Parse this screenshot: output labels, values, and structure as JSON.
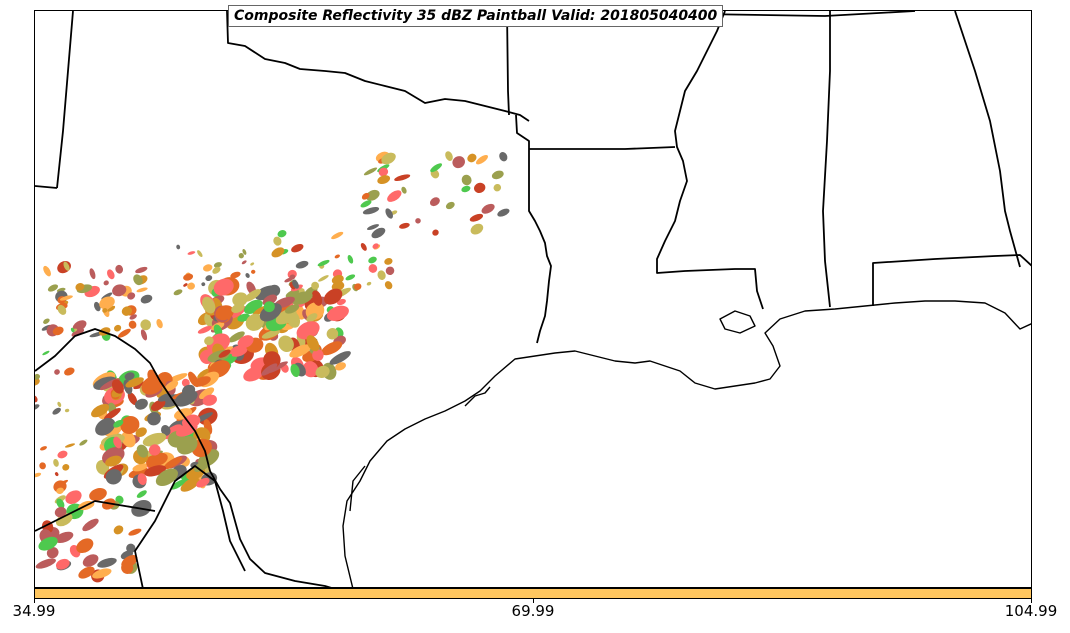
{
  "title": "Composite Reflectivity 35 dBZ Paintball Valid: 201805040400",
  "colorbar": {
    "color": "#ffc65f",
    "ticks": [
      "34.99",
      "69.99",
      "104.99"
    ]
  },
  "paintball_colors": [
    "#ff5050",
    "#c0b040",
    "#ffa030",
    "#505050",
    "#8a9030",
    "#b04040",
    "#30c030",
    "#e05000",
    "#c02000",
    "#d08000"
  ],
  "border_color": "#000000"
}
